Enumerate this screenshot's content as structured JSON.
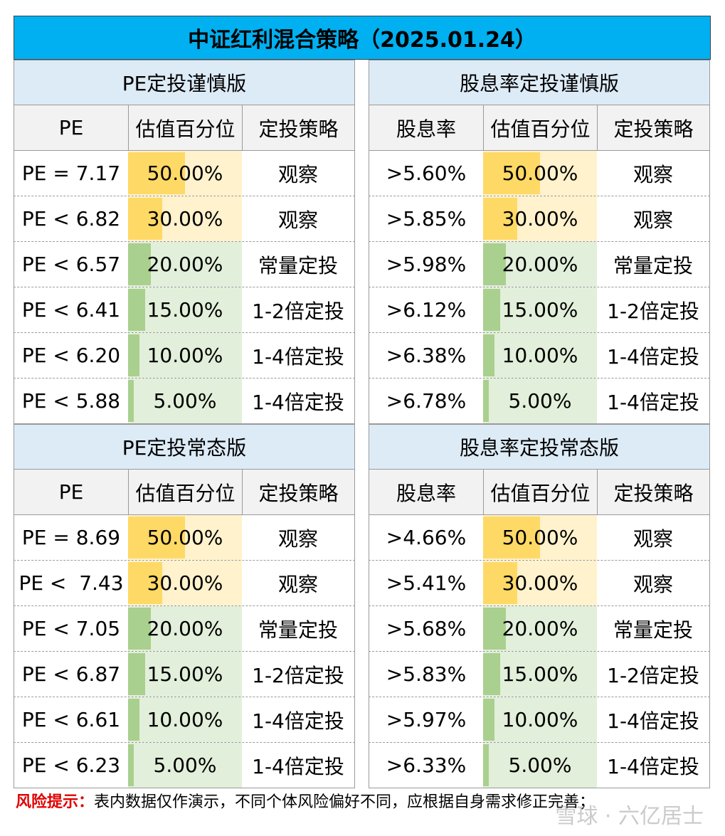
{
  "title": "中证红利混合策略（2025.01.24）",
  "colors": {
    "title_bg": "#00b0f0",
    "panel_title_bg": "#ddebf7",
    "bar_yellow": "#ffd966",
    "bar_green": "#a9d08e"
  },
  "panels": [
    {
      "title": "PE定投谨慎版",
      "headers": [
        "PE",
        "估值百分位",
        "定投策略"
      ],
      "rows": [
        {
          "metric": "PE = 7.17",
          "percentile": "50.00%",
          "pct_value": 50,
          "color": "yellow",
          "strategy": "观察"
        },
        {
          "metric": "PE < 6.82",
          "percentile": "30.00%",
          "pct_value": 30,
          "color": "yellow",
          "strategy": "观察"
        },
        {
          "metric": "PE < 6.57",
          "percentile": "20.00%",
          "pct_value": 20,
          "color": "green",
          "strategy": "常量定投"
        },
        {
          "metric": "PE < 6.41",
          "percentile": "15.00%",
          "pct_value": 15,
          "color": "green",
          "strategy": "1-2倍定投"
        },
        {
          "metric": "PE < 6.20",
          "percentile": "10.00%",
          "pct_value": 10,
          "color": "green",
          "strategy": "1-4倍定投"
        },
        {
          "metric": "PE < 5.88",
          "percentile": "5.00%",
          "pct_value": 5,
          "color": "green",
          "strategy": "1-4倍定投"
        }
      ]
    },
    {
      "title": "股息率定投谨慎版",
      "headers": [
        "股息率",
        "估值百分位",
        "定投策略"
      ],
      "rows": [
        {
          "metric": ">5.60%",
          "percentile": "50.00%",
          "pct_value": 50,
          "color": "yellow",
          "strategy": "观察"
        },
        {
          "metric": ">5.85%",
          "percentile": "30.00%",
          "pct_value": 30,
          "color": "yellow",
          "strategy": "观察"
        },
        {
          "metric": ">5.98%",
          "percentile": "20.00%",
          "pct_value": 20,
          "color": "green",
          "strategy": "常量定投"
        },
        {
          "metric": ">6.12%",
          "percentile": "15.00%",
          "pct_value": 15,
          "color": "green",
          "strategy": "1-2倍定投"
        },
        {
          "metric": ">6.38%",
          "percentile": "10.00%",
          "pct_value": 10,
          "color": "green",
          "strategy": "1-4倍定投"
        },
        {
          "metric": ">6.78%",
          "percentile": "5.00%",
          "pct_value": 5,
          "color": "green",
          "strategy": "1-4倍定投"
        }
      ]
    },
    {
      "title": "PE定投常态版",
      "headers": [
        "PE",
        "估值百分位",
        "定投策略"
      ],
      "rows": [
        {
          "metric": "PE = 8.69",
          "percentile": "50.00%",
          "pct_value": 50,
          "color": "yellow",
          "strategy": "观察"
        },
        {
          "metric": "PE <  7.43",
          "percentile": "30.00%",
          "pct_value": 30,
          "color": "yellow",
          "strategy": "观察"
        },
        {
          "metric": "PE < 7.05",
          "percentile": "20.00%",
          "pct_value": 20,
          "color": "green",
          "strategy": "常量定投"
        },
        {
          "metric": "PE < 6.87",
          "percentile": "15.00%",
          "pct_value": 15,
          "color": "green",
          "strategy": "1-2倍定投"
        },
        {
          "metric": "PE < 6.61",
          "percentile": "10.00%",
          "pct_value": 10,
          "color": "green",
          "strategy": "1-4倍定投"
        },
        {
          "metric": "PE < 6.23",
          "percentile": "5.00%",
          "pct_value": 5,
          "color": "green",
          "strategy": "1-4倍定投"
        }
      ]
    },
    {
      "title": "股息率定投常态版",
      "headers": [
        "股息率",
        "估值百分位",
        "定投策略"
      ],
      "rows": [
        {
          "metric": ">4.66%",
          "percentile": "50.00%",
          "pct_value": 50,
          "color": "yellow",
          "strategy": "观察"
        },
        {
          "metric": ">5.41%",
          "percentile": "30.00%",
          "pct_value": 30,
          "color": "yellow",
          "strategy": "观察"
        },
        {
          "metric": ">5.68%",
          "percentile": "20.00%",
          "pct_value": 20,
          "color": "green",
          "strategy": "常量定投"
        },
        {
          "metric": ">5.83%",
          "percentile": "15.00%",
          "pct_value": 15,
          "color": "green",
          "strategy": "1-2倍定投"
        },
        {
          "metric": ">5.97%",
          "percentile": "10.00%",
          "pct_value": 10,
          "color": "green",
          "strategy": "1-4倍定投"
        },
        {
          "metric": ">6.33%",
          "percentile": "5.00%",
          "pct_value": 5,
          "color": "green",
          "strategy": "1-4倍定投"
        }
      ]
    }
  ],
  "footer": {
    "risk_label": "风险提示：",
    "risk_text": "表内数据仅作演示，不同个体风险偏好不同，应根据自身需求修正完善；"
  },
  "watermark": "雪球 · 六亿居士"
}
